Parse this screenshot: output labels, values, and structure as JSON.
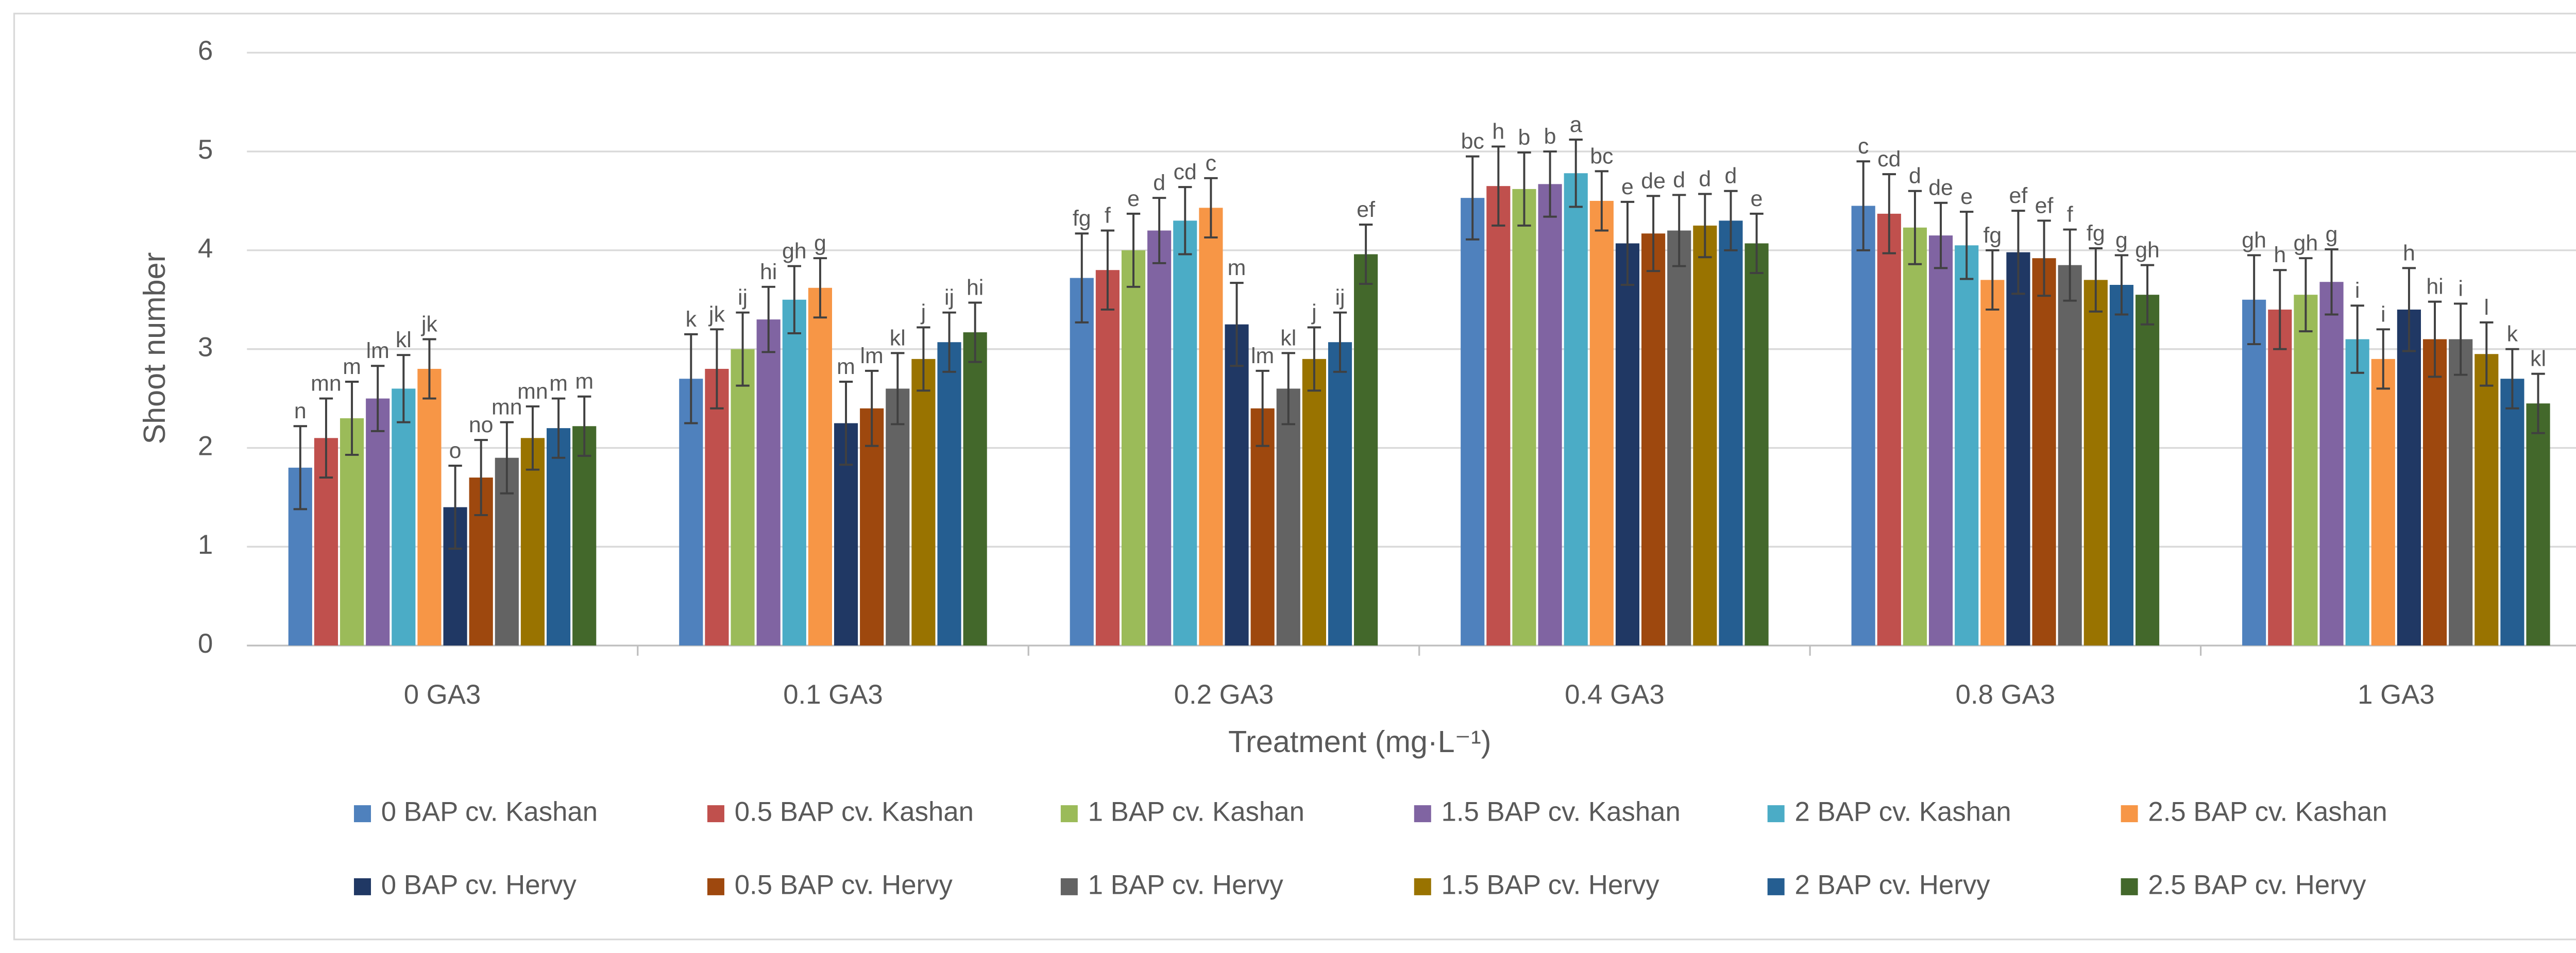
{
  "chart_data": {
    "type": "bar",
    "y_label": "Shoot number",
    "x_label": "Treatment (mg·L⁻¹)",
    "categories": [
      "0 GA3",
      "0.1 GA3",
      "0.2 GA3",
      "0.4 GA3",
      "0.8 GA3",
      "1 GA3"
    ],
    "ylim": [
      0,
      6
    ],
    "yticks": [
      0,
      1,
      2,
      3,
      4,
      5,
      6
    ],
    "grid": true,
    "legend": "bottom",
    "series": [
      {
        "name": "0 BAP cv. Kashan",
        "color": "#4f81bd",
        "values": [
          1.8,
          2.7,
          3.72,
          4.53,
          4.45,
          3.5
        ],
        "errors": [
          0.42,
          0.45,
          0.45,
          0.42,
          0.45,
          0.45
        ],
        "labels": [
          "n",
          "k",
          "fg",
          "bc",
          "c",
          "gh"
        ]
      },
      {
        "name": "0.5 BAP cv. Kashan",
        "color": "#c0504d",
        "values": [
          2.1,
          2.8,
          3.8,
          4.65,
          4.37,
          3.4
        ],
        "errors": [
          0.4,
          0.4,
          0.4,
          0.4,
          0.4,
          0.4
        ],
        "labels": [
          "mn",
          "jk",
          "f",
          "h",
          "cd",
          "h"
        ]
      },
      {
        "name": "1 BAP cv. Kashan",
        "color": "#9bbb59",
        "values": [
          2.3,
          3.0,
          4.0,
          4.62,
          4.23,
          3.55
        ],
        "errors": [
          0.37,
          0.37,
          0.37,
          0.37,
          0.37,
          0.37
        ],
        "labels": [
          "m",
          "ij",
          "e",
          "b",
          "d",
          "gh"
        ]
      },
      {
        "name": "1.5 BAP cv. Kashan",
        "color": "#8064a2",
        "values": [
          2.5,
          3.3,
          4.2,
          4.67,
          4.15,
          3.68
        ],
        "errors": [
          0.33,
          0.33,
          0.33,
          0.33,
          0.33,
          0.33
        ],
        "labels": [
          "lm",
          "hi",
          "d",
          "b",
          "de",
          "g"
        ]
      },
      {
        "name": "2 BAP cv. Kashan",
        "color": "#4bacc6",
        "values": [
          2.6,
          3.5,
          4.3,
          4.78,
          4.05,
          3.1
        ],
        "errors": [
          0.34,
          0.34,
          0.34,
          0.34,
          0.34,
          0.34
        ],
        "labels": [
          "kl",
          "gh",
          "cd",
          "a",
          "e",
          "i"
        ]
      },
      {
        "name": "2.5 BAP cv. Kashan",
        "color": "#f79646",
        "values": [
          2.8,
          3.62,
          4.43,
          4.5,
          3.7,
          2.9
        ],
        "errors": [
          0.3,
          0.3,
          0.3,
          0.3,
          0.3,
          0.3
        ],
        "labels": [
          "jk",
          "g",
          "c",
          "bc",
          "fg",
          "i"
        ]
      },
      {
        "name": "0 BAP cv. Hervy",
        "color": "#203864",
        "values": [
          1.4,
          2.25,
          3.25,
          4.07,
          3.98,
          3.4
        ],
        "errors": [
          0.42,
          0.42,
          0.42,
          0.42,
          0.42,
          0.42
        ],
        "labels": [
          "o",
          "m",
          "m",
          "e",
          "ef",
          "h"
        ]
      },
      {
        "name": "0.5 BAP cv. Hervy",
        "color": "#9e480e",
        "values": [
          1.7,
          2.4,
          2.4,
          4.17,
          3.92,
          3.1
        ],
        "errors": [
          0.38,
          0.38,
          0.38,
          0.38,
          0.38,
          0.38
        ],
        "labels": [
          "no",
          "lm",
          "lm",
          "de",
          "ef",
          "hi"
        ]
      },
      {
        "name": "1 BAP cv. Hervy",
        "color": "#636363",
        "values": [
          1.9,
          2.6,
          2.6,
          4.2,
          3.85,
          3.1
        ],
        "errors": [
          0.36,
          0.36,
          0.36,
          0.36,
          0.36,
          0.36
        ],
        "labels": [
          "mn",
          "kl",
          "kl",
          "d",
          "f",
          "i"
        ]
      },
      {
        "name": "1.5 BAP cv. Hervy",
        "color": "#997300",
        "values": [
          2.1,
          2.9,
          2.9,
          4.25,
          3.7,
          2.95
        ],
        "errors": [
          0.32,
          0.32,
          0.32,
          0.32,
          0.32,
          0.32
        ],
        "labels": [
          "mn",
          "j",
          "j",
          "d",
          "fg",
          "l"
        ]
      },
      {
        "name": "2 BAP cv. Hervy",
        "color": "#255e91",
        "values": [
          2.2,
          3.07,
          3.07,
          4.3,
          3.65,
          2.7
        ],
        "errors": [
          0.3,
          0.3,
          0.3,
          0.3,
          0.3,
          0.3
        ],
        "labels": [
          "m",
          "ij",
          "ij",
          "d",
          "g",
          "k"
        ]
      },
      {
        "name": "2.5 BAP cv. Hervy",
        "color": "#43682b",
        "values": [
          2.22,
          3.17,
          3.96,
          4.07,
          3.55,
          2.45
        ],
        "errors": [
          0.3,
          0.3,
          0.3,
          0.3,
          0.3,
          0.3
        ],
        "labels": [
          "m",
          "hi",
          "ef",
          "e",
          "gh",
          "kl"
        ]
      }
    ]
  }
}
